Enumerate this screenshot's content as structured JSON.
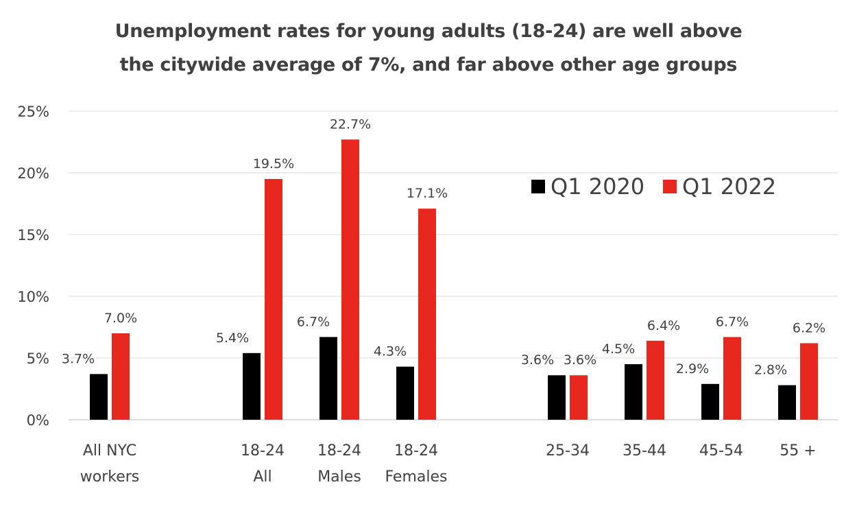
{
  "chart_data": {
    "type": "bar",
    "title": "Unemployment rates for young adults (18-24) are well above the citywide average of 7%, and far above other age groups",
    "title_lines": [
      "Unemployment rates for young adults (18-24) are well above",
      "the citywide average of 7%, and far above other age groups"
    ],
    "categories": [
      [
        "All NYC",
        "workers"
      ],
      [
        "18-24",
        "All"
      ],
      [
        "18-24",
        "Males"
      ],
      [
        "18-24",
        "Females"
      ],
      [
        "25-34"
      ],
      [
        "35-44"
      ],
      [
        "45-54"
      ],
      [
        "55 +"
      ]
    ],
    "series": [
      {
        "name": "Q1 2020",
        "color": "#000000",
        "values": [
          3.7,
          5.4,
          6.7,
          4.3,
          3.6,
          4.5,
          2.9,
          2.8
        ],
        "labels": [
          "3.7%",
          "5.4%",
          "6.7%",
          "4.3%",
          "3.6%",
          "4.5%",
          "2.9%",
          "2.8%"
        ]
      },
      {
        "name": "Q1 2022",
        "color": "#e8281e",
        "values": [
          7.0,
          19.5,
          22.7,
          17.1,
          3.6,
          6.4,
          6.7,
          6.2
        ],
        "labels": [
          "7.0%",
          "19.5%",
          "22.7%",
          "17.1%",
          "3.6%",
          "6.4%",
          "6.7%",
          "6.2%"
        ]
      }
    ],
    "y_ticks": [
      0,
      5,
      10,
      15,
      20,
      25
    ],
    "y_tick_labels": [
      "0%",
      "5%",
      "10%",
      "15%",
      "20%",
      "25%"
    ],
    "ylim": [
      0,
      25
    ],
    "xlabel": "",
    "ylabel": "",
    "grid": true,
    "legend_position": "top-right"
  }
}
